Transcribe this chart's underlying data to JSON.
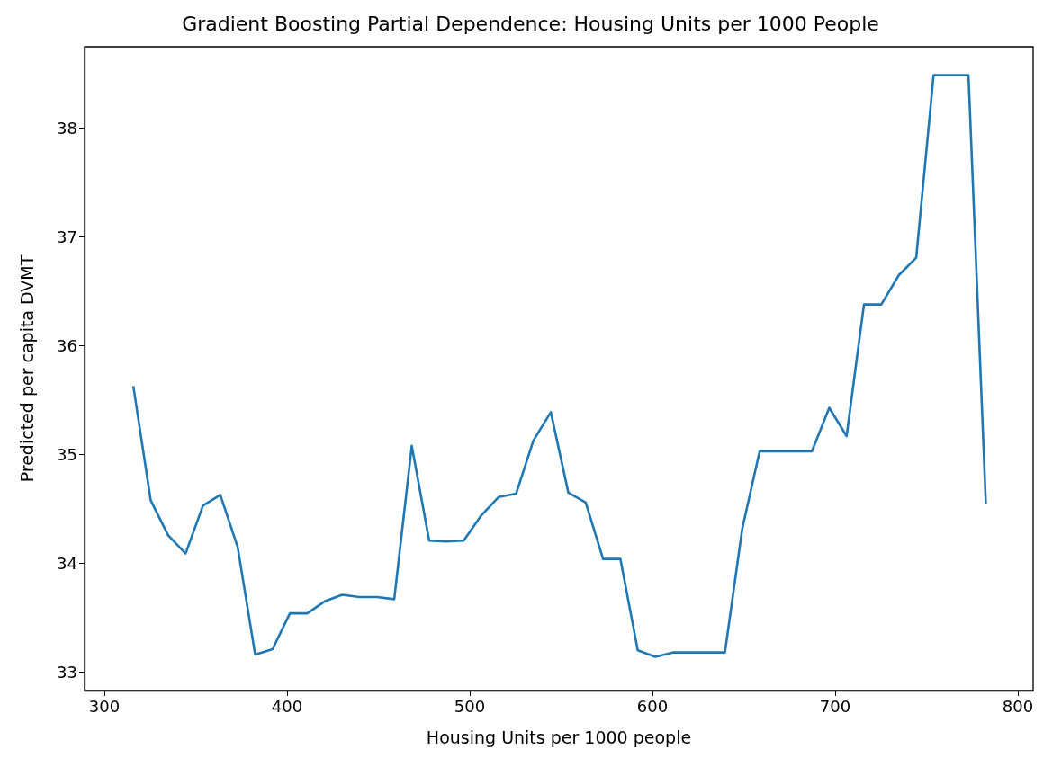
{
  "chart_data": {
    "type": "line",
    "title": "Gradient Boosting Partial Dependence: Housing Units per 1000 People",
    "xlabel": "Housing Units per 1000 people",
    "ylabel": "Predicted per capita DVMT",
    "x": [
      315.9,
      325.4,
      334.9,
      344.5,
      354.0,
      363.5,
      373.0,
      382.6,
      392.1,
      401.6,
      411.1,
      420.6,
      430.2,
      439.7,
      449.2,
      458.7,
      468.3,
      477.8,
      487.3,
      496.8,
      506.3,
      515.9,
      525.4,
      534.9,
      544.4,
      554.0,
      563.5,
      573.0,
      582.5,
      592.0,
      601.6,
      611.1,
      620.6,
      630.1,
      639.7,
      649.2,
      658.7,
      668.2,
      677.7,
      687.3,
      696.8,
      706.3,
      715.8,
      725.3,
      734.9,
      744.4,
      753.9,
      763.4,
      773.0,
      782.5
    ],
    "series": [
      {
        "color": "#1f77b4",
        "values": [
          35.63,
          34.58,
          34.26,
          34.09,
          34.53,
          34.63,
          34.15,
          33.16,
          33.21,
          33.54,
          33.54,
          33.65,
          33.71,
          33.69,
          33.69,
          33.67,
          35.08,
          34.21,
          34.2,
          34.21,
          34.44,
          34.61,
          34.64,
          35.13,
          35.39,
          34.65,
          34.56,
          34.04,
          34.04,
          33.2,
          33.14,
          33.18,
          33.18,
          33.18,
          33.18,
          34.32,
          35.03,
          35.03,
          35.03,
          35.03,
          35.43,
          35.17,
          36.38,
          36.38,
          36.65,
          36.81,
          38.49,
          38.49,
          38.49,
          34.55
        ]
      }
    ],
    "xlim": [
      289.2,
      808.4
    ],
    "xticks": [
      300,
      400,
      500,
      600,
      700,
      800
    ],
    "ylim": [
      32.83,
      38.75
    ],
    "yticks": [
      33,
      34,
      35,
      36,
      37,
      38
    ],
    "marker": "none",
    "line_style": "solid"
  }
}
